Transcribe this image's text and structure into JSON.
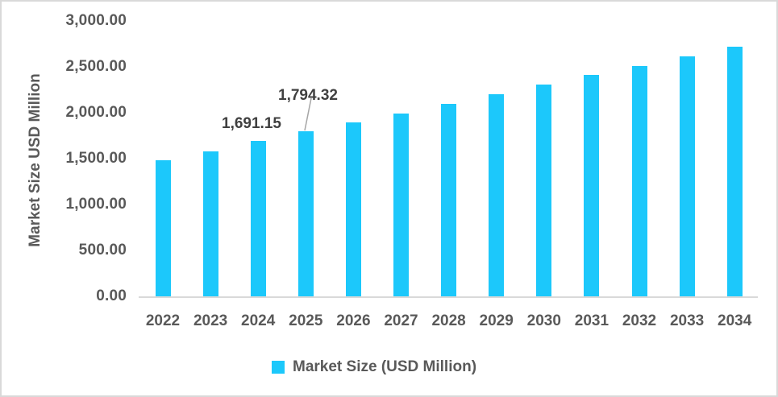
{
  "chart_data": {
    "type": "bar",
    "title": "",
    "xlabel": "",
    "ylabel": "Market Size USD Million",
    "ylim": [
      0,
      3000
    ],
    "yticks": [
      "0.00",
      "500.00",
      "1,000.00",
      "1,500.00",
      "2,000.00",
      "2,500.00",
      "3,000.00"
    ],
    "grid": false,
    "legend_position": "bottom",
    "categories": [
      "2022",
      "2023",
      "2024",
      "2025",
      "2026",
      "2027",
      "2028",
      "2029",
      "2030",
      "2031",
      "2032",
      "2033",
      "2034"
    ],
    "series": [
      {
        "name": "Market Size (USD Million)",
        "color": "#1cc8fb",
        "values": [
          1482,
          1580,
          1691.15,
          1794.32,
          1895,
          1991,
          2096,
          2202,
          2307,
          2412,
          2509,
          2614,
          2719
        ]
      }
    ],
    "annotations": [
      {
        "category": "2024",
        "label": "1,691.15"
      },
      {
        "category": "2025",
        "label": "1,794.32"
      }
    ]
  },
  "colors": {
    "bar": "#1cc8fb",
    "axis": "#d9d9d9",
    "text": "#595959",
    "label": "#404040"
  }
}
